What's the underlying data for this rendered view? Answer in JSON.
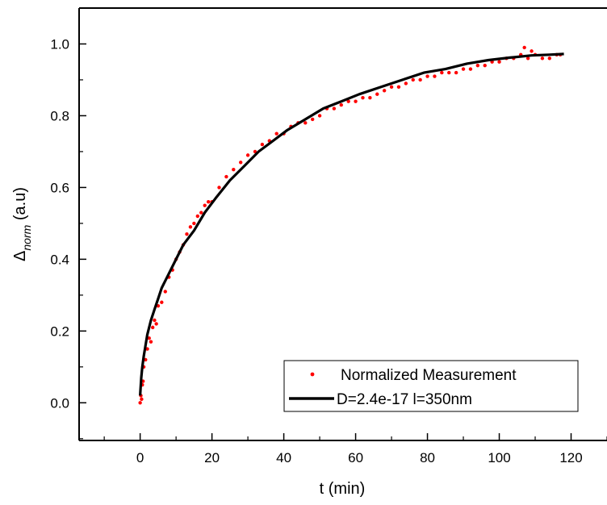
{
  "chart_data": {
    "type": "scatter",
    "xlabel": "t (min)",
    "ylabel": {
      "symbol": "Δ",
      "subscript": "norm",
      "suffix": " (a.u)"
    },
    "xlim": [
      -17,
      130
    ],
    "ylim": [
      -0.105,
      1.1
    ],
    "x_ticks": [
      0,
      20,
      40,
      60,
      80,
      100,
      120
    ],
    "x_tick_labels": [
      "0",
      "20",
      "40",
      "60",
      "80",
      "100",
      "120"
    ],
    "x_minor_step": 10,
    "y_ticks": [
      0.0,
      0.2,
      0.4,
      0.6,
      0.8,
      1.0
    ],
    "y_tick_labels": [
      "0.0",
      "0.2",
      "0.4",
      "0.6",
      "0.8",
      "1.0"
    ],
    "y_minor_step": 0.1,
    "grid": false,
    "legend_position": "bottom-right",
    "series": [
      {
        "name": "Normalized Measurement",
        "kind": "markers",
        "color": "#ff0000",
        "x": [
          0,
          0.2,
          0.4,
          0.6,
          0.8,
          1,
          1.5,
          2,
          2.5,
          3,
          3.5,
          4,
          4.5,
          5,
          6,
          7,
          8,
          9,
          10,
          11,
          12,
          13,
          14,
          15,
          16,
          17,
          18,
          19,
          20,
          22,
          24,
          26,
          28,
          30,
          32,
          34,
          36,
          38,
          40,
          42,
          44,
          46,
          48,
          50,
          52,
          54,
          56,
          58,
          60,
          62,
          64,
          66,
          68,
          70,
          72,
          74,
          76,
          78,
          80,
          82,
          84,
          86,
          88,
          90,
          92,
          94,
          96,
          98,
          100,
          102,
          104,
          106,
          107,
          108,
          109,
          110,
          112,
          114,
          116,
          117
        ],
        "y": [
          0.0,
          0.02,
          0.01,
          0.05,
          0.06,
          0.1,
          0.12,
          0.15,
          0.18,
          0.17,
          0.21,
          0.23,
          0.22,
          0.27,
          0.28,
          0.31,
          0.35,
          0.37,
          0.4,
          0.42,
          0.44,
          0.47,
          0.49,
          0.5,
          0.52,
          0.53,
          0.55,
          0.56,
          0.56,
          0.6,
          0.63,
          0.65,
          0.67,
          0.69,
          0.7,
          0.72,
          0.73,
          0.75,
          0.75,
          0.77,
          0.78,
          0.78,
          0.79,
          0.8,
          0.82,
          0.82,
          0.83,
          0.84,
          0.84,
          0.85,
          0.85,
          0.86,
          0.87,
          0.88,
          0.88,
          0.89,
          0.9,
          0.9,
          0.91,
          0.91,
          0.92,
          0.92,
          0.92,
          0.93,
          0.93,
          0.94,
          0.94,
          0.95,
          0.95,
          0.96,
          0.96,
          0.97,
          0.99,
          0.96,
          0.98,
          0.97,
          0.96,
          0.96,
          0.97,
          0.97
        ]
      },
      {
        "name": "D=2.4e-17 l=350nm",
        "kind": "line",
        "color": "#000000",
        "x": [
          0,
          0.3,
          0.6,
          1,
          1.5,
          2,
          3,
          4,
          5,
          6,
          8,
          10,
          12,
          15,
          18,
          21,
          25,
          29,
          33,
          37,
          41,
          46,
          51,
          56,
          61,
          67,
          73,
          79,
          85,
          91,
          97,
          103,
          109,
          114,
          118
        ],
        "y": [
          0.02,
          0.07,
          0.1,
          0.13,
          0.16,
          0.19,
          0.23,
          0.26,
          0.29,
          0.32,
          0.36,
          0.4,
          0.44,
          0.48,
          0.53,
          0.57,
          0.62,
          0.66,
          0.7,
          0.73,
          0.76,
          0.79,
          0.82,
          0.84,
          0.86,
          0.88,
          0.9,
          0.92,
          0.93,
          0.945,
          0.955,
          0.962,
          0.968,
          0.97,
          0.972
        ]
      }
    ]
  }
}
